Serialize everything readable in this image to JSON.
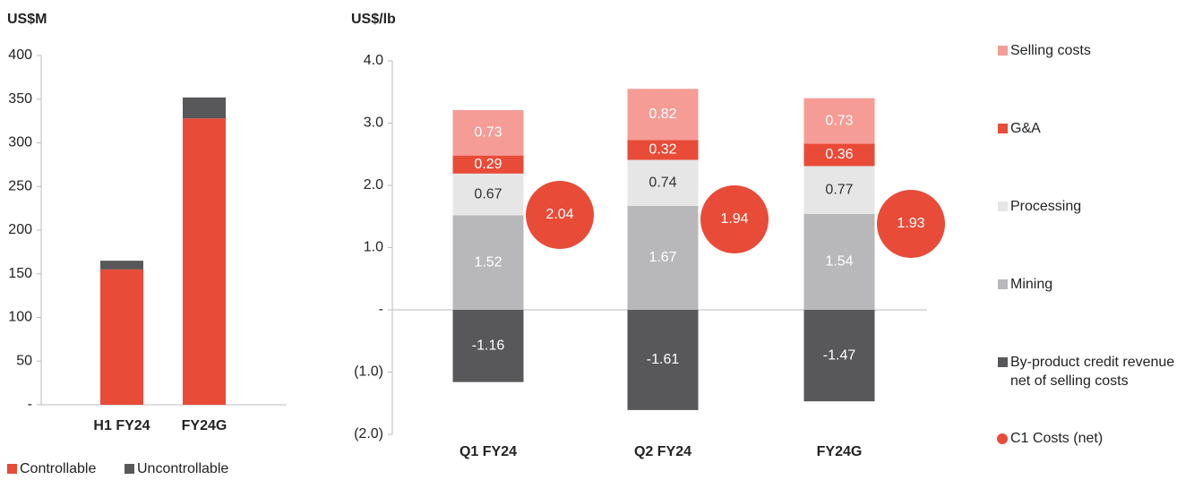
{
  "chart_data": [
    {
      "type": "bar",
      "stacked": true,
      "y_label": "US$M",
      "categories": [
        "H1 FY24",
        "FY24G"
      ],
      "series": [
        {
          "name": "Controllable",
          "color": "#e84b37",
          "values": [
            155,
            328
          ]
        },
        {
          "name": "Uncontrollable",
          "color": "#58585a",
          "values": [
            10,
            24
          ]
        }
      ],
      "ylim": [
        0,
        400
      ],
      "yticks": [
        {
          "value": 0,
          "label": "-"
        },
        50,
        100,
        150,
        200,
        250,
        300,
        350,
        400
      ],
      "legend": "bottom"
    },
    {
      "type": "bar",
      "stacked": true,
      "y_label": "US$/lb",
      "categories": [
        "Q1 FY24",
        "Q2 FY24",
        "FY24G"
      ],
      "series": [
        {
          "name": "By-product credit revenue net of selling costs",
          "color": "#58585a",
          "label_color": "#ffffff",
          "values": [
            -1.16,
            -1.61,
            -1.47
          ]
        },
        {
          "name": "Mining",
          "color": "#b8b8ba",
          "label_color": "#ffffff",
          "values": [
            1.52,
            1.67,
            1.54
          ]
        },
        {
          "name": "Processing",
          "color": "#e6e6e6",
          "label_color": "#333333",
          "values": [
            0.67,
            0.74,
            0.77
          ]
        },
        {
          "name": "G&A",
          "color": "#e84b37",
          "label_color": "#ffffff",
          "values": [
            0.29,
            0.32,
            0.36
          ]
        },
        {
          "name": "Selling costs",
          "color": "#f59c96",
          "label_color": "#ffffff",
          "values": [
            0.73,
            0.82,
            0.73
          ]
        }
      ],
      "markers": {
        "name": "C1 Costs (net)",
        "color": "#e84b37",
        "values": [
          2.04,
          1.94,
          1.93
        ]
      },
      "ylim": [
        -2,
        4
      ],
      "yticks": [
        {
          "value": -2,
          "label": "(2.0)"
        },
        {
          "value": -1,
          "label": "(1.0)"
        },
        {
          "value": 0,
          "label": "-"
        },
        {
          "value": 1,
          "label": "1.0"
        },
        {
          "value": 2,
          "label": "2.0"
        },
        {
          "value": 3,
          "label": "3.0"
        },
        {
          "value": 4,
          "label": "4.0"
        }
      ],
      "legend": "right"
    }
  ]
}
